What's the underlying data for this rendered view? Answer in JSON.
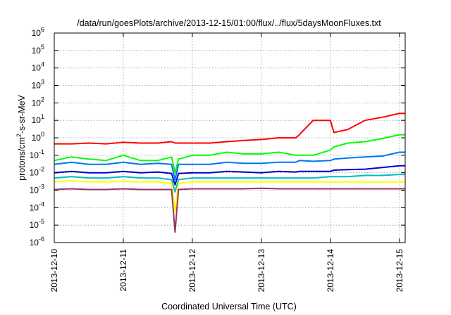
{
  "chart_data": {
    "type": "line",
    "title": "/data/run/goesPlots/archive/2013-12-15/01:00/flux/../flux/5daysMoonFluxes.txt",
    "xlabel": "Coordinated Universal Time (UTC)",
    "ylabel": {
      "base": "protons/cm",
      "sup": "2",
      "rest": "-s-sr-MeV"
    },
    "y_scale": "log",
    "ylim": [
      1e-06,
      1000000.0
    ],
    "xlim": [
      "2013-12-10",
      "2013-12-15 02:00"
    ],
    "grid": true,
    "x_ticks": [
      "2013-12-10",
      "2013-12-11",
      "2013-12-12",
      "2013-12-13",
      "2013-12-14",
      "2013-12-15"
    ],
    "y_ticks": [
      {
        "value": 1e-06,
        "base": "10",
        "exp": "-6"
      },
      {
        "value": 1e-05,
        "base": "10",
        "exp": "-5"
      },
      {
        "value": 0.0001,
        "base": "10",
        "exp": "-4"
      },
      {
        "value": 0.001,
        "base": "10",
        "exp": "-3"
      },
      {
        "value": 0.01,
        "base": "10",
        "exp": "-2"
      },
      {
        "value": 0.1,
        "base": "10",
        "exp": "-1"
      },
      {
        "value": 1,
        "base": "10",
        "exp": "0"
      },
      {
        "value": 10,
        "base": "10",
        "exp": "1"
      },
      {
        "value": 100,
        "base": "10",
        "exp": "2"
      },
      {
        "value": 1000,
        "base": "10",
        "exp": "3"
      },
      {
        "value": 10000,
        "base": "10",
        "exp": "4"
      },
      {
        "value": 100000,
        "base": "10",
        "exp": "5"
      },
      {
        "value": 1000000,
        "base": "10",
        "exp": "6"
      }
    ],
    "x_days": [
      0,
      0.25,
      0.5,
      0.75,
      1.0,
      1.25,
      1.5,
      1.7,
      1.75,
      1.8,
      2.0,
      2.25,
      2.5,
      2.75,
      3.0,
      3.25,
      3.5,
      3.55,
      3.75,
      4.0,
      4.05,
      4.25,
      4.5,
      4.75,
      5.0,
      5.08
    ],
    "series": [
      {
        "color": "#ff0000",
        "values": [
          0.45,
          0.45,
          0.5,
          0.45,
          0.55,
          0.5,
          0.5,
          0.6,
          0.5,
          0.5,
          0.5,
          0.5,
          0.6,
          0.7,
          0.8,
          1.0,
          1.0,
          1.5,
          10,
          10,
          2.0,
          3.0,
          10,
          15,
          25,
          25
        ]
      },
      {
        "color": "#00ff00",
        "values": [
          0.05,
          0.08,
          0.06,
          0.05,
          0.1,
          0.05,
          0.05,
          0.08,
          0.01,
          0.06,
          0.1,
          0.1,
          0.15,
          0.12,
          0.12,
          0.15,
          0.1,
          0.1,
          0.1,
          0.2,
          0.3,
          0.5,
          0.6,
          0.9,
          1.5,
          1.5
        ]
      },
      {
        "color": "#0077ee",
        "values": [
          0.03,
          0.04,
          0.03,
          0.03,
          0.04,
          0.03,
          0.035,
          0.03,
          0.004,
          0.03,
          0.03,
          0.03,
          0.04,
          0.035,
          0.035,
          0.04,
          0.04,
          0.05,
          0.045,
          0.05,
          0.06,
          0.07,
          0.08,
          0.09,
          0.15,
          0.15
        ]
      },
      {
        "color": "#0000cc",
        "values": [
          0.01,
          0.012,
          0.01,
          0.01,
          0.012,
          0.01,
          0.011,
          0.009,
          0.002,
          0.009,
          0.01,
          0.01,
          0.012,
          0.011,
          0.01,
          0.012,
          0.011,
          0.012,
          0.012,
          0.012,
          0.014,
          0.015,
          0.016,
          0.02,
          0.025,
          0.025
        ]
      },
      {
        "color": "#00bbbb",
        "values": [
          0.005,
          0.006,
          0.005,
          0.005,
          0.006,
          0.005,
          0.005,
          0.004,
          0.0008,
          0.004,
          0.005,
          0.005,
          0.005,
          0.005,
          0.005,
          0.005,
          0.005,
          0.005,
          0.005,
          0.006,
          0.006,
          0.006,
          0.007,
          0.007,
          0.008,
          0.008
        ]
      },
      {
        "color": "#ffff00",
        "values": [
          0.003,
          0.0035,
          0.003,
          0.003,
          0.0032,
          0.003,
          0.003,
          0.0025,
          6e-05,
          0.0025,
          0.003,
          0.003,
          0.003,
          0.003,
          0.003,
          0.003,
          0.003,
          0.003,
          0.003,
          0.003,
          0.003,
          0.003,
          0.003,
          0.003,
          0.003,
          0.003
        ]
      },
      {
        "color": "#993366",
        "values": [
          0.0011,
          0.0012,
          0.0011,
          0.0011,
          0.0012,
          0.0011,
          0.0011,
          0.0011,
          4e-06,
          0.0011,
          0.0012,
          0.0012,
          0.0012,
          0.0012,
          0.0013,
          0.0012,
          0.0012,
          0.0012,
          0.0012,
          0.0012,
          0.0012,
          0.0012,
          0.0012,
          0.0012,
          0.0012,
          0.0012
        ]
      }
    ]
  }
}
